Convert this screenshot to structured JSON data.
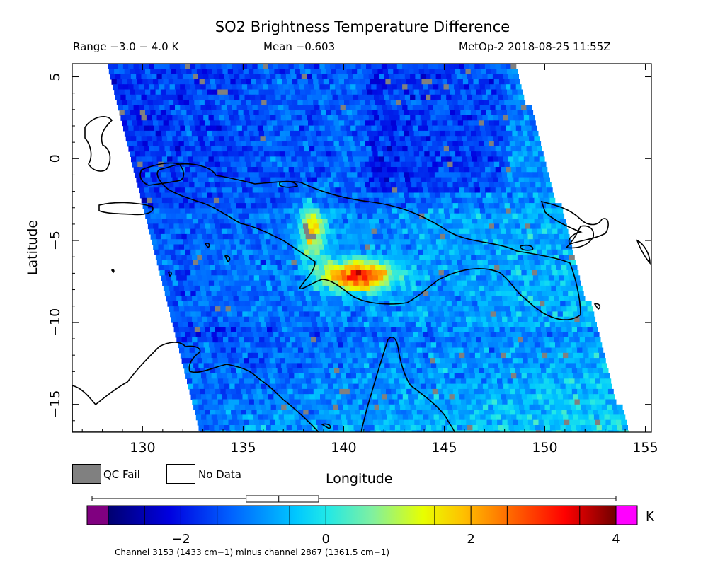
{
  "header": {
    "title": "SO2 Brightness Temperature Difference",
    "range": "Range −3.0 − 4.0 K",
    "mean": "Mean −0.603",
    "satellite": "MetOp-2 2018-08-25 11:55Z"
  },
  "axes": {
    "xlabel": "Longitude",
    "ylabel": "Latitude",
    "xlim": [
      126.5,
      155.3
    ],
    "ylim": [
      -16.7,
      5.8
    ],
    "xticks": [
      130,
      135,
      140,
      145,
      150,
      155
    ],
    "yticks": [
      5,
      0,
      -5,
      -10,
      -15
    ],
    "xtick_labels": [
      "130",
      "135",
      "140",
      "145",
      "150",
      "155"
    ],
    "ytick_labels": [
      "5",
      "0",
      "−5",
      "−10",
      "−15"
    ]
  },
  "legend": {
    "qc_fail": "QC Fail",
    "no_data": "No Data",
    "qc_color": "#808080"
  },
  "colorbar": {
    "min": -3.0,
    "max": 4.0,
    "unit": "K",
    "tick_values": [
      -2,
      0,
      2,
      4
    ],
    "tick_labels": [
      "−2",
      "0",
      "2",
      "4"
    ],
    "under_color": "#800080",
    "over_color": "#ff00ff",
    "box_stats": {
      "whisker_low": -3.0,
      "q1": -1.1,
      "median": -0.65,
      "q3": -0.1,
      "whisker_high": 4.0
    },
    "caption": "Channel 3153 (1433 cm−1) minus channel 2867 (1361.5 cm−1)"
  },
  "features": {
    "plume_peak": {
      "lon": 140.5,
      "lat": -7.0,
      "value": 3.7
    },
    "volcano_name_shown": false
  }
}
